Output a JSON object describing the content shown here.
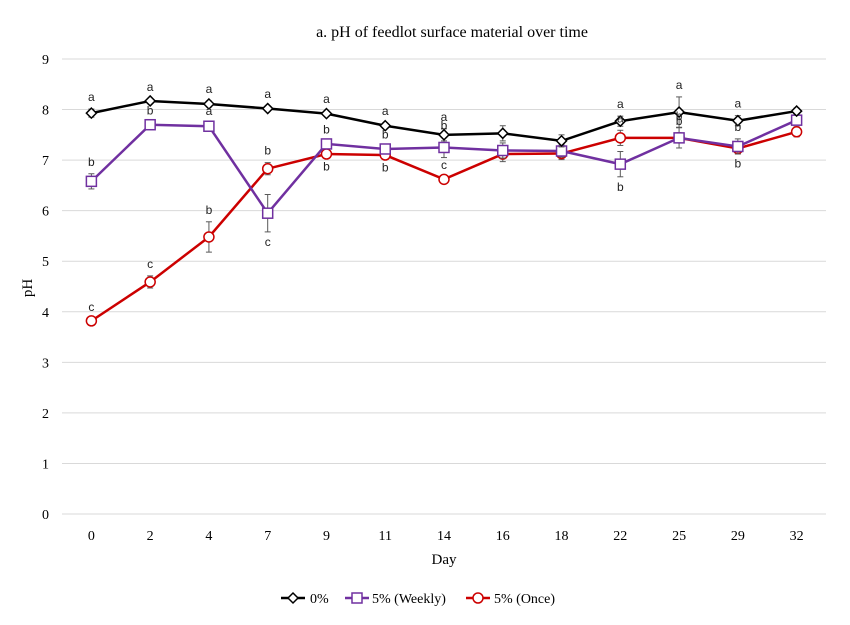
{
  "chart_data": {
    "type": "line",
    "title": "a. pH of feedlot surface material over time",
    "xlabel": "Day",
    "ylabel": "pH",
    "ylim": [
      0,
      9
    ],
    "yticks": [
      0,
      1,
      2,
      3,
      4,
      5,
      6,
      7,
      8,
      9
    ],
    "categories": [
      "0",
      "2",
      "4",
      "7",
      "9",
      "11",
      "14",
      "16",
      "18",
      "22",
      "25",
      "29",
      "32"
    ],
    "grid": true,
    "legend_position": "bottom",
    "series": [
      {
        "name": "0%",
        "color": "#000000",
        "marker": "diamond",
        "values": [
          7.93,
          8.17,
          8.11,
          8.02,
          7.92,
          7.68,
          7.5,
          7.53,
          7.38,
          7.77,
          7.95,
          7.78,
          7.97
        ],
        "errors": [
          0.08,
          0.04,
          0.06,
          0.05,
          0.05,
          0.05,
          0.12,
          0.15,
          0.12,
          0.1,
          0.3,
          0.1,
          0.06
        ],
        "labels": [
          "a",
          "a",
          "a",
          "a",
          "a",
          "a",
          "a",
          "",
          "",
          "a",
          "a",
          "a",
          ""
        ]
      },
      {
        "name": "5% (Weekly)",
        "color": "#7030a0",
        "marker": "square",
        "values": [
          6.58,
          7.7,
          7.67,
          5.95,
          7.32,
          7.22,
          7.25,
          7.19,
          7.18,
          6.92,
          7.44,
          7.27,
          7.79
        ],
        "errors": [
          0.15,
          0.04,
          0.06,
          0.37,
          0.05,
          0.05,
          0.2,
          0.15,
          0.12,
          0.25,
          0.2,
          0.15,
          0.08
        ],
        "labels": [
          "b",
          "b",
          "a",
          "c",
          "b",
          "b",
          "b",
          "",
          "",
          "b",
          "b",
          "b",
          ""
        ]
      },
      {
        "name": "5% (Once)",
        "color": "#cc0000",
        "marker": "circle",
        "values": [
          3.82,
          4.59,
          5.48,
          6.83,
          7.12,
          7.1,
          6.62,
          7.12,
          7.13,
          7.44,
          7.44,
          7.23,
          7.56
        ],
        "errors": [
          0.04,
          0.12,
          0.3,
          0.12,
          0.05,
          0.05,
          0.05,
          0.15,
          0.12,
          0.15,
          0.1,
          0.1,
          0.1
        ],
        "labels": [
          "c",
          "c",
          "b",
          "b",
          "b",
          "b",
          "c",
          "",
          "",
          "a",
          "b",
          "b",
          ""
        ]
      }
    ]
  }
}
